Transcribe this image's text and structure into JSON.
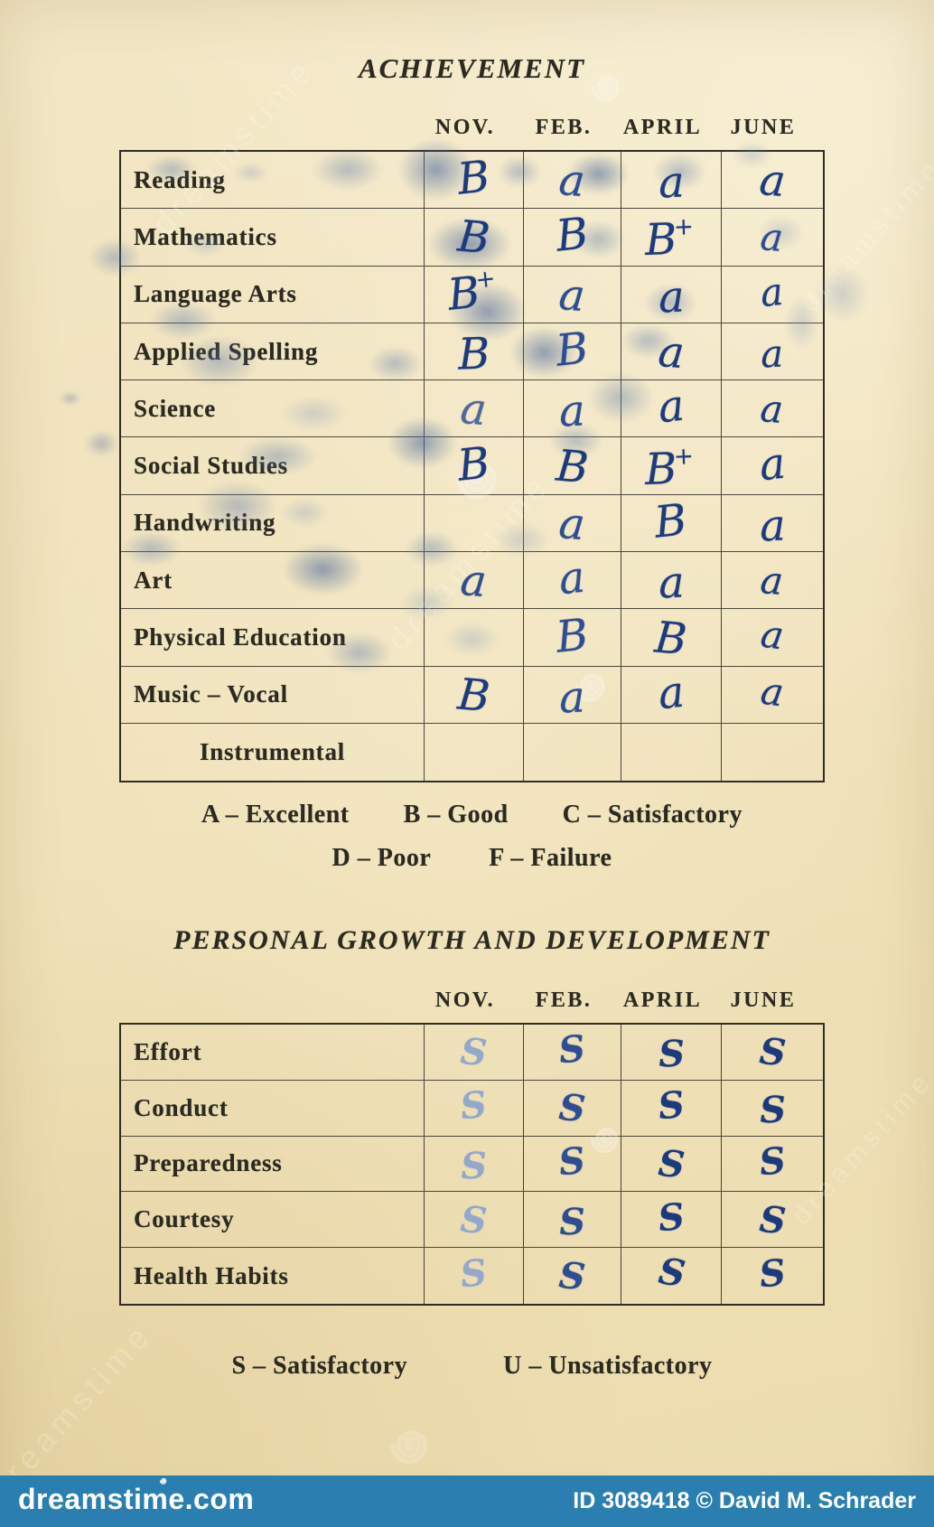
{
  "achievement": {
    "title": "ACHIEVEMENT",
    "columns": [
      "NOV.",
      "FEB.",
      "APRIL",
      "JUNE"
    ],
    "rows": [
      {
        "label": "Reading",
        "grades": [
          "B",
          "a",
          "a",
          "a"
        ]
      },
      {
        "label": "Mathematics",
        "grades": [
          "B",
          "B",
          "B+",
          "a"
        ]
      },
      {
        "label": "Language Arts",
        "grades": [
          "B+",
          "a",
          "a",
          "a"
        ]
      },
      {
        "label": "Applied Spelling",
        "grades": [
          "B",
          "B",
          "a",
          "a"
        ]
      },
      {
        "label": "Science",
        "grades": [
          "a",
          "a",
          "a",
          "a"
        ]
      },
      {
        "label": "Social Studies",
        "grades": [
          "B",
          "B",
          "B+",
          "a"
        ]
      },
      {
        "label": "Handwriting",
        "grades": [
          "",
          "a",
          "B",
          "a"
        ]
      },
      {
        "label": "Art",
        "grades": [
          "a",
          "a",
          "a",
          "a"
        ]
      },
      {
        "label": "Physical Education",
        "grades": [
          "",
          "B",
          "B",
          "a"
        ]
      },
      {
        "label": "Music – Vocal",
        "grades": [
          "B",
          "a",
          "a",
          "a"
        ]
      },
      {
        "label": "Instrumental",
        "grades": [
          "",
          "",
          "",
          ""
        ]
      }
    ],
    "legend_line1": [
      "A – Excellent",
      "B – Good",
      "C – Satisfactory"
    ],
    "legend_line2": [
      "D – Poor",
      "F – Failure"
    ]
  },
  "personal_growth": {
    "title": "PERSONAL GROWTH AND DEVELOPMENT",
    "columns": [
      "NOV.",
      "FEB.",
      "APRIL",
      "JUNE"
    ],
    "rows": [
      {
        "label": "Effort",
        "grades": [
          "S",
          "S",
          "S",
          "S"
        ]
      },
      {
        "label": "Conduct",
        "grades": [
          "S",
          "S",
          "S",
          "S"
        ]
      },
      {
        "label": "Preparedness",
        "grades": [
          "S",
          "S",
          "S",
          "S"
        ]
      },
      {
        "label": "Courtesy",
        "grades": [
          "S",
          "S",
          "S",
          "S"
        ]
      },
      {
        "label": "Health Habits",
        "grades": [
          "S",
          "S",
          "S",
          "S"
        ]
      }
    ],
    "legend": [
      "S – Satisfactory",
      "U – Unsatisfactory"
    ]
  },
  "watermark": {
    "text": "dreamstime"
  },
  "footer": {
    "site": "dreamstime.com",
    "credit": "ID 3089418 © David M. Schrader"
  },
  "colors": {
    "paper": "#f0e2ba",
    "ink": "#23407f",
    "ink_faded": "#93a8cb",
    "footer_bar": "#2a7fb0",
    "print": "#2b2a21"
  }
}
